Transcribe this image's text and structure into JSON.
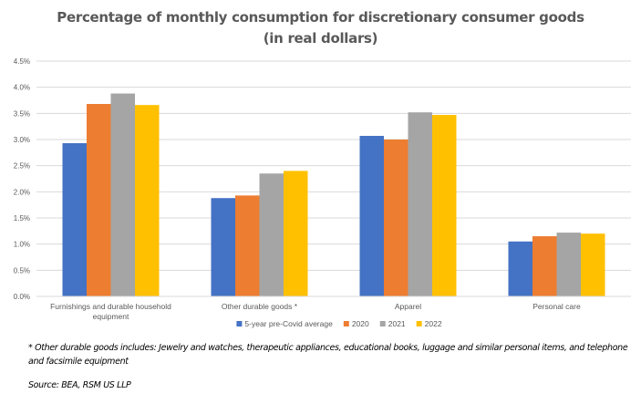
{
  "chart_data": {
    "type": "bar",
    "title": "Percentage of monthly consumption for discretionary consumer goods",
    "subtitle": "(in real dollars)",
    "xlabel": "",
    "ylabel": "",
    "ylim": [
      0,
      4.5
    ],
    "ytick_step": 0.5,
    "ytick_labels": [
      "0.0%",
      "0.5%",
      "1.0%",
      "1.5%",
      "2.0%",
      "2.5%",
      "3.0%",
      "3.5%",
      "4.0%",
      "4.5%"
    ],
    "grid": true,
    "legend_position": "bottom",
    "categories": [
      [
        "Furnishings and durable household",
        "equipment"
      ],
      [
        "Other durable goods *"
      ],
      [
        "Apparel"
      ],
      [
        "Personal care"
      ]
    ],
    "series": [
      {
        "name": "5-year pre-Covid average",
        "color": "#4472C4",
        "values": [
          2.93,
          1.88,
          3.07,
          1.05
        ]
      },
      {
        "name": "2020",
        "color": "#ED7D31",
        "values": [
          3.68,
          1.93,
          3.0,
          1.15
        ]
      },
      {
        "name": "2021",
        "color": "#A5A5A5",
        "values": [
          3.88,
          2.35,
          3.52,
          1.22
        ]
      },
      {
        "name": "2022",
        "color": "#FFC000",
        "values": [
          3.66,
          2.4,
          3.47,
          1.2
        ]
      }
    ]
  },
  "notes": {
    "footnote": "* Other durable goods includes: Jewelry and watches, therapeutic appliances, educational books, luggage and similar personal items, and telephone and facsimile equipment",
    "source": "Source: BEA, RSM US LLP"
  }
}
